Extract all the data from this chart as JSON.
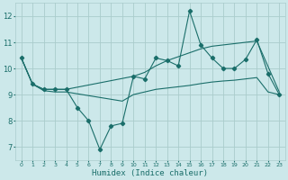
{
  "title": "",
  "xlabel": "Humidex (Indice chaleur)",
  "bg_color": "#cce8ea",
  "grid_color": "#aacccc",
  "line_color": "#1a6e6a",
  "xlim": [
    -0.5,
    23.5
  ],
  "ylim": [
    6.5,
    12.5
  ],
  "yticks": [
    7,
    8,
    9,
    10,
    11,
    12
  ],
  "xticks": [
    0,
    1,
    2,
    3,
    4,
    5,
    6,
    7,
    8,
    9,
    10,
    11,
    12,
    13,
    14,
    15,
    16,
    17,
    18,
    19,
    20,
    21,
    22,
    23
  ],
  "x_main": [
    0,
    1,
    2,
    3,
    4,
    5,
    6,
    7,
    8,
    9,
    10,
    11,
    12,
    13,
    14,
    15,
    16,
    17,
    18,
    19,
    20,
    21,
    22,
    23
  ],
  "y_main": [
    10.4,
    9.4,
    9.2,
    9.2,
    9.2,
    8.5,
    8.0,
    6.9,
    7.8,
    7.9,
    9.7,
    9.6,
    10.4,
    10.3,
    10.1,
    12.2,
    10.9,
    10.4,
    10.0,
    10.0,
    10.35,
    11.1,
    9.8,
    9.0
  ],
  "x_upper": [
    0,
    1,
    2,
    3,
    4,
    10,
    11,
    12,
    13,
    14,
    15,
    16,
    17,
    21,
    23
  ],
  "y_upper": [
    10.4,
    9.4,
    9.2,
    9.2,
    9.2,
    9.7,
    9.85,
    10.1,
    10.3,
    10.45,
    10.6,
    10.75,
    10.85,
    11.05,
    9.1
  ],
  "x_lower": [
    0,
    1,
    2,
    3,
    4,
    9,
    10,
    11,
    12,
    13,
    14,
    15,
    16,
    17,
    18,
    19,
    20,
    21,
    22,
    23
  ],
  "y_lower": [
    10.4,
    9.4,
    9.15,
    9.1,
    9.1,
    8.75,
    9.0,
    9.1,
    9.2,
    9.25,
    9.3,
    9.35,
    9.42,
    9.48,
    9.52,
    9.55,
    9.6,
    9.65,
    9.1,
    9.0
  ]
}
